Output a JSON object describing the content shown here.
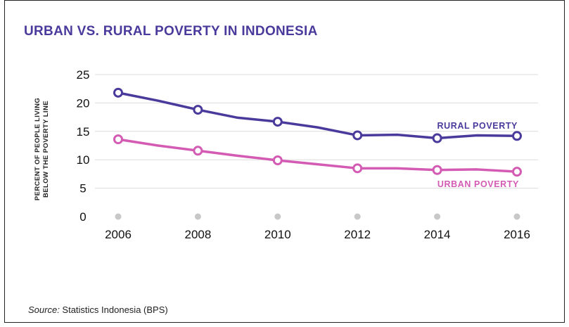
{
  "chart_data": {
    "type": "line",
    "title": "URBAN VS. RURAL POVERTY IN INDONESIA",
    "ylabel": [
      "PERCENT OF PEOPLE LIVING",
      "BELOW THE POVERTY LINE"
    ],
    "xlabel": "",
    "x": [
      2006,
      2007,
      2008,
      2009,
      2010,
      2011,
      2012,
      2013,
      2014,
      2015,
      2016
    ],
    "x_ticks": [
      "2006",
      "2008",
      "2010",
      "2012",
      "2014",
      "2016"
    ],
    "y_ticks": [
      "0",
      "5",
      "10",
      "15",
      "20",
      "25"
    ],
    "ylim": [
      0,
      25
    ],
    "xlim": [
      2006,
      2016
    ],
    "grid": "horizontal",
    "series": [
      {
        "name": "RURAL POVERTY",
        "color": "#4a3a9c",
        "values": [
          21.8,
          20.4,
          18.8,
          17.4,
          16.7,
          15.7,
          14.3,
          14.4,
          13.8,
          14.3,
          14.2
        ],
        "marked_years": [
          2006,
          2008,
          2010,
          2012,
          2014,
          2016
        ]
      },
      {
        "name": "URBAN POVERTY",
        "color": "#d45bb4",
        "values": [
          13.6,
          12.5,
          11.6,
          10.7,
          9.9,
          9.2,
          8.5,
          8.5,
          8.2,
          8.3,
          7.9
        ],
        "marked_years": [
          2006,
          2008,
          2010,
          2012,
          2014,
          2016
        ]
      }
    ]
  },
  "source": {
    "label": "Source:",
    "text": " Statistics Indonesia (BPS)"
  }
}
